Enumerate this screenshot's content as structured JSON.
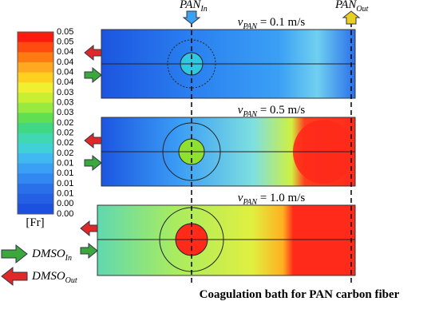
{
  "colorbar": {
    "label": "[Fr]",
    "ticks": [
      "0.05",
      "0.05",
      "0.04",
      "0.04",
      "0.04",
      "0.04",
      "0.03",
      "0.03",
      "0.03",
      "0.02",
      "0.02",
      "0.02",
      "0.02",
      "0.01",
      "0.01",
      "0.01",
      "0.01",
      "0.00",
      "0.00"
    ]
  },
  "panels": [
    {
      "var": "v",
      "sub": "PAN",
      "text": " = 0.1 m/s"
    },
    {
      "var": "v",
      "sub": "PAN",
      "text": " = 0.5 m/s"
    },
    {
      "var": "v",
      "sub": "PAN",
      "text": " = 1.0 m/s"
    }
  ],
  "markers": {
    "inlet": {
      "main": "PAN",
      "sub": "In"
    },
    "outlet": {
      "main": "PAN",
      "sub": "Out"
    }
  },
  "legend": [
    {
      "main": "DMSO",
      "sub": "In"
    },
    {
      "main": "DMSO",
      "sub": "Out"
    }
  ],
  "caption": "Coagulation bath for PAN carbon fiber"
}
